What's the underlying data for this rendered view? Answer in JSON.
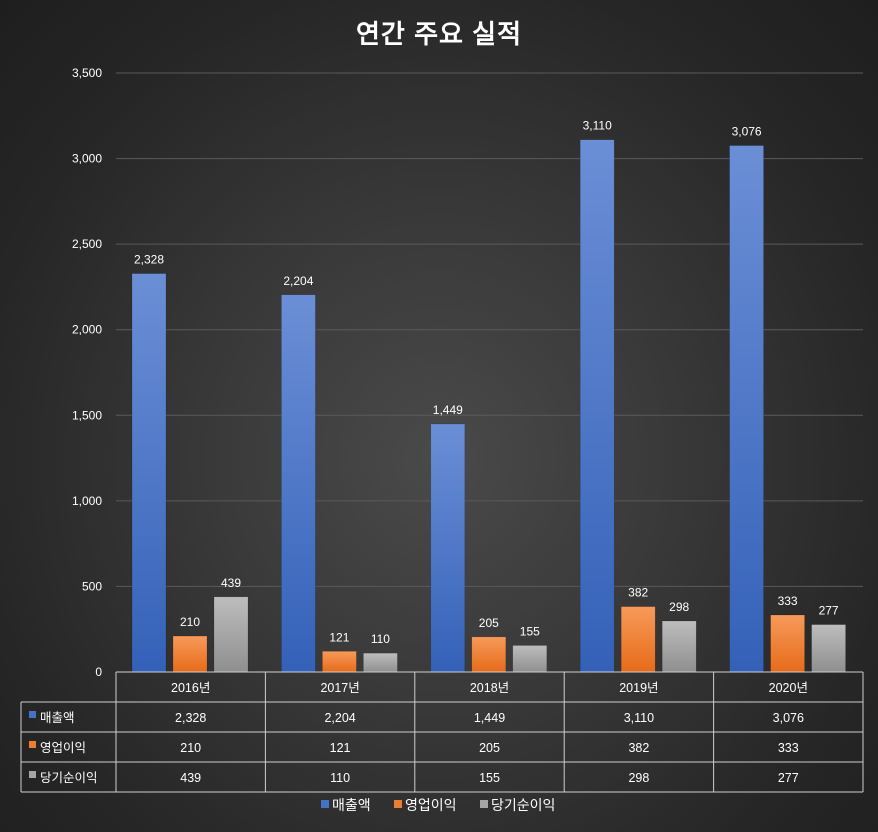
{
  "chart_data": {
    "type": "bar",
    "title": "연간 주요 실적",
    "categories": [
      "2016년",
      "2017년",
      "2018년",
      "2019년",
      "2020년"
    ],
    "series": [
      {
        "name": "매출액",
        "color": "#4472C4",
        "values": [
          2328,
          2204,
          1449,
          3110,
          3076
        ],
        "labels": [
          "2,328",
          "2,204",
          "1,449",
          "3,110",
          "3,076"
        ]
      },
      {
        "name": "영업이익",
        "color": "#ED7D31",
        "values": [
          210,
          121,
          205,
          382,
          333
        ],
        "labels": [
          "210",
          "121",
          "205",
          "382",
          "333"
        ]
      },
      {
        "name": "당기순이익",
        "color": "#A5A5A5",
        "values": [
          439,
          110,
          155,
          298,
          277
        ],
        "labels": [
          "439",
          "110",
          "155",
          "298",
          "277"
        ]
      }
    ],
    "ylim": [
      0,
      3500
    ],
    "yticks": [
      0,
      500,
      1000,
      1500,
      2000,
      2500,
      3000,
      3500
    ],
    "ytick_labels": [
      "0",
      "500",
      "1,000",
      "1,500",
      "2,000",
      "2,500",
      "3,000",
      "3,500"
    ],
    "grid": true,
    "legend": "bottom",
    "data_table": true,
    "xlabel": "",
    "ylabel": ""
  }
}
